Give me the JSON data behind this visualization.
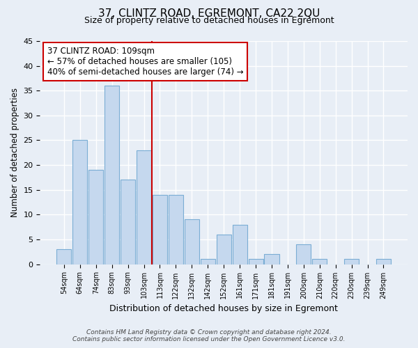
{
  "title": "37, CLINTZ ROAD, EGREMONT, CA22 2QU",
  "subtitle": "Size of property relative to detached houses in Egremont",
  "xlabel": "Distribution of detached houses by size in Egremont",
  "ylabel": "Number of detached properties",
  "bar_labels": [
    "54sqm",
    "64sqm",
    "74sqm",
    "83sqm",
    "93sqm",
    "103sqm",
    "113sqm",
    "122sqm",
    "132sqm",
    "142sqm",
    "152sqm",
    "161sqm",
    "171sqm",
    "181sqm",
    "191sqm",
    "200sqm",
    "210sqm",
    "220sqm",
    "230sqm",
    "239sqm",
    "249sqm"
  ],
  "bar_values": [
    3,
    25,
    19,
    36,
    17,
    23,
    14,
    14,
    9,
    1,
    6,
    8,
    1,
    2,
    0,
    4,
    1,
    0,
    1,
    0,
    1
  ],
  "bar_color": "#c5d8ee",
  "bar_edge_color": "#7aadd4",
  "vline_x": 5.5,
  "vline_color": "#cc0000",
  "annotation_title": "37 CLINTZ ROAD: 109sqm",
  "annotation_line1": "← 57% of detached houses are smaller (105)",
  "annotation_line2": "40% of semi-detached houses are larger (74) →",
  "annotation_box_color": "#ffffff",
  "annotation_box_edge": "#cc0000",
  "ylim": [
    0,
    45
  ],
  "yticks": [
    0,
    5,
    10,
    15,
    20,
    25,
    30,
    35,
    40,
    45
  ],
  "footer_line1": "Contains HM Land Registry data © Crown copyright and database right 2024.",
  "footer_line2": "Contains public sector information licensed under the Open Government Licence v3.0.",
  "bg_color": "#e8eef6",
  "plot_bg_color": "#e8eef6",
  "grid_color": "#ffffff",
  "title_fontsize": 11,
  "subtitle_fontsize": 9
}
